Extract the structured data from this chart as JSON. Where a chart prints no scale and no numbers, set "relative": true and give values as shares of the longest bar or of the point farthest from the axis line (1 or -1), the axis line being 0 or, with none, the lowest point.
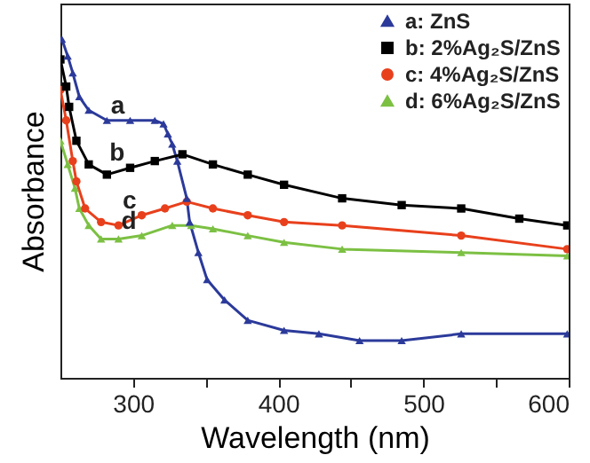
{
  "chart_data": {
    "type": "line",
    "xlabel": "Wavelength (nm)",
    "ylabel": "Absorbance",
    "relative": true,
    "xlim": [
      250,
      600
    ],
    "xticks": [
      300,
      {
        "value": 350,
        "label": null
      },
      400,
      {
        "value": 450,
        "label": null
      },
      500,
      {
        "value": 550,
        "label": null
      },
      600
    ],
    "legend": "top right",
    "grid": false,
    "annotations": [
      "a",
      "b",
      "c",
      "d"
    ],
    "series": [
      {
        "name": "a: ZnS",
        "color": "#2b3a9a",
        "marker": "triangle",
        "x": [
          251,
          255,
          258.5,
          263,
          269.5,
          282,
          298,
          315,
          321,
          324,
          327,
          330.5,
          337,
          339,
          345,
          351,
          363,
          379,
          404,
          428,
          456,
          485,
          526,
          599
        ],
        "values": [
          1.0,
          0.95,
          0.9,
          0.83,
          0.79,
          0.76,
          0.76,
          0.76,
          0.75,
          0.72,
          0.69,
          0.64,
          0.53,
          0.46,
          0.37,
          0.29,
          0.23,
          0.17,
          0.14,
          0.13,
          0.11,
          0.11,
          0.13,
          0.13
        ]
      },
      {
        "name": "b: 2%Ag₂S/ZnS",
        "color": "#000000",
        "marker": "square",
        "x": [
          250,
          254,
          256,
          261,
          269.5,
          282,
          298,
          315,
          334,
          355,
          379,
          404,
          444,
          485,
          526,
          566,
          599
        ],
        "values": [
          0.94,
          0.86,
          0.8,
          0.7,
          0.63,
          0.6,
          0.62,
          0.64,
          0.66,
          0.63,
          0.6,
          0.57,
          0.53,
          0.51,
          0.5,
          0.47,
          0.45
        ]
      },
      {
        "name": "c: 4%Ag₂S/ZnS",
        "color": "#e8401c",
        "marker": "circle",
        "x": [
          250,
          254,
          258.5,
          261,
          267,
          278,
          290,
          306,
          322,
          337,
          355,
          379,
          404,
          444,
          526,
          599
        ],
        "values": [
          0.85,
          0.76,
          0.64,
          0.58,
          0.5,
          0.46,
          0.45,
          0.48,
          0.5,
          0.52,
          0.5,
          0.48,
          0.46,
          0.45,
          0.42,
          0.38
        ]
      },
      {
        "name": "d: 6%Ag₂S/ZnS",
        "color": "#7cc043",
        "marker": "triangle",
        "x": [
          250,
          255,
          260,
          263,
          269.5,
          278,
          290,
          306,
          327,
          340,
          355,
          379,
          404,
          444,
          526,
          599
        ],
        "values": [
          0.7,
          0.63,
          0.56,
          0.5,
          0.45,
          0.41,
          0.41,
          0.42,
          0.45,
          0.45,
          0.44,
          0.42,
          0.4,
          0.38,
          0.37,
          0.36
        ]
      }
    ]
  }
}
